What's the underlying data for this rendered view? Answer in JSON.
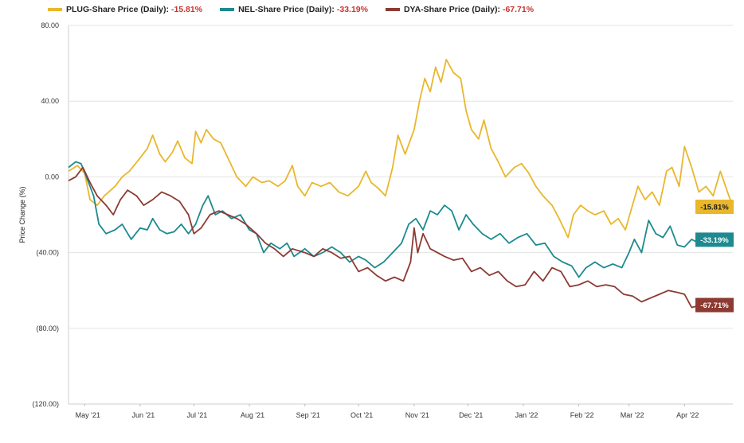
{
  "chart_data": {
    "type": "line",
    "ylabel": "Price Change (%)",
    "ylim": [
      -120,
      80
    ],
    "y_ticks": [
      80,
      40,
      0,
      -40,
      -80,
      -120
    ],
    "y_tick_labels": [
      "80.00",
      "40.00",
      "0.00",
      "(40.00)",
      "(80.00)",
      "(120.00)"
    ],
    "xlim": [
      "2021-04-22",
      "2022-04-28"
    ],
    "x_ticks": [
      "2021-05-01",
      "2021-06-01",
      "2021-07-01",
      "2021-08-01",
      "2021-09-01",
      "2021-10-01",
      "2021-11-01",
      "2021-12-01",
      "2022-01-01",
      "2022-02-01",
      "2022-03-01",
      "2022-04-01"
    ],
    "x_tick_labels": [
      "May '21",
      "Jun '21",
      "Jul '21",
      "Aug '21",
      "Sep '21",
      "Oct '21",
      "Nov '21",
      "Dec '21",
      "Jan '22",
      "Feb '22",
      "Mar '22",
      "Apr '22"
    ],
    "grid": "horizontal",
    "legend_position": "top",
    "series": [
      {
        "name": "PLUG-Share Price (Daily):",
        "final_label": "-15.81%",
        "color": "#e9b72c",
        "points": [
          [
            "2021-04-22",
            3
          ],
          [
            "2021-04-27",
            6
          ],
          [
            "2021-05-01",
            2
          ],
          [
            "2021-05-04",
            -12
          ],
          [
            "2021-05-08",
            -15
          ],
          [
            "2021-05-12",
            -10
          ],
          [
            "2021-05-18",
            -5
          ],
          [
            "2021-05-22",
            0
          ],
          [
            "2021-05-26",
            3
          ],
          [
            "2021-06-01",
            10
          ],
          [
            "2021-06-05",
            15
          ],
          [
            "2021-06-08",
            22
          ],
          [
            "2021-06-12",
            12
          ],
          [
            "2021-06-15",
            8
          ],
          [
            "2021-06-19",
            13
          ],
          [
            "2021-06-22",
            19
          ],
          [
            "2021-06-26",
            10
          ],
          [
            "2021-06-30",
            7
          ],
          [
            "2021-07-02",
            24
          ],
          [
            "2021-07-05",
            18
          ],
          [
            "2021-07-08",
            25
          ],
          [
            "2021-07-12",
            20
          ],
          [
            "2021-07-16",
            18
          ],
          [
            "2021-07-20",
            10
          ],
          [
            "2021-07-25",
            0
          ],
          [
            "2021-07-30",
            -5
          ],
          [
            "2021-08-03",
            0
          ],
          [
            "2021-08-08",
            -3
          ],
          [
            "2021-08-12",
            -2
          ],
          [
            "2021-08-17",
            -5
          ],
          [
            "2021-08-21",
            -2
          ],
          [
            "2021-08-25",
            6
          ],
          [
            "2021-08-28",
            -5
          ],
          [
            "2021-09-01",
            -10
          ],
          [
            "2021-09-05",
            -3
          ],
          [
            "2021-09-10",
            -5
          ],
          [
            "2021-09-15",
            -3
          ],
          [
            "2021-09-20",
            -8
          ],
          [
            "2021-09-25",
            -10
          ],
          [
            "2021-10-01",
            -5
          ],
          [
            "2021-10-05",
            3
          ],
          [
            "2021-10-08",
            -3
          ],
          [
            "2021-10-12",
            -6
          ],
          [
            "2021-10-16",
            -10
          ],
          [
            "2021-10-20",
            5
          ],
          [
            "2021-10-23",
            22
          ],
          [
            "2021-10-27",
            12
          ],
          [
            "2021-11-01",
            25
          ],
          [
            "2021-11-04",
            40
          ],
          [
            "2021-11-07",
            52
          ],
          [
            "2021-11-10",
            45
          ],
          [
            "2021-11-13",
            58
          ],
          [
            "2021-11-16",
            50
          ],
          [
            "2021-11-19",
            62
          ],
          [
            "2021-11-23",
            55
          ],
          [
            "2021-11-27",
            52
          ],
          [
            "2021-11-30",
            35
          ],
          [
            "2021-12-03",
            25
          ],
          [
            "2021-12-07",
            20
          ],
          [
            "2021-12-10",
            30
          ],
          [
            "2021-12-14",
            15
          ],
          [
            "2021-12-18",
            8
          ],
          [
            "2021-12-22",
            0
          ],
          [
            "2021-12-27",
            5
          ],
          [
            "2021-12-31",
            7
          ],
          [
            "2022-01-04",
            2
          ],
          [
            "2022-01-08",
            -5
          ],
          [
            "2022-01-12",
            -10
          ],
          [
            "2022-01-17",
            -15
          ],
          [
            "2022-01-21",
            -22
          ],
          [
            "2022-01-26",
            -32
          ],
          [
            "2022-01-29",
            -20
          ],
          [
            "2022-02-02",
            -15
          ],
          [
            "2022-02-06",
            -18
          ],
          [
            "2022-02-10",
            -20
          ],
          [
            "2022-02-15",
            -18
          ],
          [
            "2022-02-19",
            -25
          ],
          [
            "2022-02-23",
            -22
          ],
          [
            "2022-02-27",
            -28
          ],
          [
            "2022-03-02",
            -18
          ],
          [
            "2022-03-06",
            -5
          ],
          [
            "2022-03-10",
            -12
          ],
          [
            "2022-03-14",
            -8
          ],
          [
            "2022-03-18",
            -15
          ],
          [
            "2022-03-22",
            3
          ],
          [
            "2022-03-25",
            5
          ],
          [
            "2022-03-29",
            -5
          ],
          [
            "2022-04-01",
            16
          ],
          [
            "2022-04-05",
            5
          ],
          [
            "2022-04-09",
            -8
          ],
          [
            "2022-04-13",
            -5
          ],
          [
            "2022-04-17",
            -10
          ],
          [
            "2022-04-21",
            3
          ],
          [
            "2022-04-25",
            -8
          ],
          [
            "2022-04-28",
            -15.81
          ]
        ]
      },
      {
        "name": "NEL-Share Price (Daily):",
        "final_label": "-33.19%",
        "color": "#1d8a8f",
        "points": [
          [
            "2021-04-22",
            5
          ],
          [
            "2021-04-26",
            8
          ],
          [
            "2021-04-29",
            7
          ],
          [
            "2021-05-02",
            0
          ],
          [
            "2021-05-06",
            -10
          ],
          [
            "2021-05-09",
            -25
          ],
          [
            "2021-05-13",
            -30
          ],
          [
            "2021-05-18",
            -28
          ],
          [
            "2021-05-22",
            -25
          ],
          [
            "2021-05-27",
            -33
          ],
          [
            "2021-06-01",
            -27
          ],
          [
            "2021-06-05",
            -28
          ],
          [
            "2021-06-08",
            -22
          ],
          [
            "2021-06-12",
            -28
          ],
          [
            "2021-06-16",
            -30
          ],
          [
            "2021-06-20",
            -29
          ],
          [
            "2021-06-24",
            -25
          ],
          [
            "2021-06-28",
            -30
          ],
          [
            "2021-07-02",
            -25
          ],
          [
            "2021-07-06",
            -15
          ],
          [
            "2021-07-09",
            -10
          ],
          [
            "2021-07-13",
            -20
          ],
          [
            "2021-07-17",
            -18
          ],
          [
            "2021-07-22",
            -22
          ],
          [
            "2021-07-27",
            -20
          ],
          [
            "2021-08-01",
            -28
          ],
          [
            "2021-08-05",
            -30
          ],
          [
            "2021-08-09",
            -40
          ],
          [
            "2021-08-13",
            -35
          ],
          [
            "2021-08-18",
            -38
          ],
          [
            "2021-08-22",
            -35
          ],
          [
            "2021-08-26",
            -42
          ],
          [
            "2021-09-01",
            -38
          ],
          [
            "2021-09-06",
            -42
          ],
          [
            "2021-09-11",
            -40
          ],
          [
            "2021-09-16",
            -37
          ],
          [
            "2021-09-21",
            -40
          ],
          [
            "2021-09-26",
            -45
          ],
          [
            "2021-10-01",
            -42
          ],
          [
            "2021-10-05",
            -44
          ],
          [
            "2021-10-10",
            -48
          ],
          [
            "2021-10-15",
            -45
          ],
          [
            "2021-10-20",
            -40
          ],
          [
            "2021-10-25",
            -35
          ],
          [
            "2021-10-29",
            -25
          ],
          [
            "2021-11-02",
            -22
          ],
          [
            "2021-11-06",
            -28
          ],
          [
            "2021-11-10",
            -18
          ],
          [
            "2021-11-14",
            -20
          ],
          [
            "2021-11-18",
            -15
          ],
          [
            "2021-11-22",
            -18
          ],
          [
            "2021-11-26",
            -28
          ],
          [
            "2021-11-30",
            -20
          ],
          [
            "2021-12-04",
            -25
          ],
          [
            "2021-12-09",
            -30
          ],
          [
            "2021-12-14",
            -33
          ],
          [
            "2021-12-19",
            -30
          ],
          [
            "2021-12-24",
            -35
          ],
          [
            "2021-12-29",
            -32
          ],
          [
            "2022-01-03",
            -30
          ],
          [
            "2022-01-08",
            -36
          ],
          [
            "2022-01-13",
            -35
          ],
          [
            "2022-01-18",
            -42
          ],
          [
            "2022-01-23",
            -45
          ],
          [
            "2022-01-28",
            -47
          ],
          [
            "2022-02-01",
            -53
          ],
          [
            "2022-02-05",
            -48
          ],
          [
            "2022-02-10",
            -45
          ],
          [
            "2022-02-15",
            -48
          ],
          [
            "2022-02-20",
            -46
          ],
          [
            "2022-02-25",
            -48
          ],
          [
            "2022-03-01",
            -40
          ],
          [
            "2022-03-04",
            -33
          ],
          [
            "2022-03-08",
            -40
          ],
          [
            "2022-03-12",
            -23
          ],
          [
            "2022-03-16",
            -30
          ],
          [
            "2022-03-20",
            -32
          ],
          [
            "2022-03-24",
            -26
          ],
          [
            "2022-03-28",
            -36
          ],
          [
            "2022-04-01",
            -37
          ],
          [
            "2022-04-05",
            -33
          ],
          [
            "2022-04-09",
            -35
          ],
          [
            "2022-04-13",
            -34
          ],
          [
            "2022-04-17",
            -35
          ],
          [
            "2022-04-21",
            -33
          ],
          [
            "2022-04-25",
            -30
          ],
          [
            "2022-04-28",
            -33.19
          ]
        ]
      },
      {
        "name": "DYA-Share Price (Daily):",
        "final_label": "-67.71%",
        "color": "#8c3a32",
        "points": [
          [
            "2021-04-22",
            -2
          ],
          [
            "2021-04-26",
            0
          ],
          [
            "2021-04-30",
            5
          ],
          [
            "2021-05-04",
            -3
          ],
          [
            "2021-05-08",
            -10
          ],
          [
            "2021-05-13",
            -15
          ],
          [
            "2021-05-17",
            -20
          ],
          [
            "2021-05-21",
            -12
          ],
          [
            "2021-05-25",
            -7
          ],
          [
            "2021-05-30",
            -10
          ],
          [
            "2021-06-03",
            -15
          ],
          [
            "2021-06-08",
            -12
          ],
          [
            "2021-06-13",
            -8
          ],
          [
            "2021-06-18",
            -10
          ],
          [
            "2021-06-23",
            -13
          ],
          [
            "2021-06-28",
            -20
          ],
          [
            "2021-07-01",
            -30
          ],
          [
            "2021-07-05",
            -27
          ],
          [
            "2021-07-10",
            -20
          ],
          [
            "2021-07-15",
            -18
          ],
          [
            "2021-07-20",
            -20
          ],
          [
            "2021-07-25",
            -22
          ],
          [
            "2021-07-30",
            -25
          ],
          [
            "2021-08-05",
            -30
          ],
          [
            "2021-08-10",
            -35
          ],
          [
            "2021-08-15",
            -38
          ],
          [
            "2021-08-20",
            -42
          ],
          [
            "2021-08-25",
            -38
          ],
          [
            "2021-09-01",
            -40
          ],
          [
            "2021-09-06",
            -42
          ],
          [
            "2021-09-11",
            -38
          ],
          [
            "2021-09-16",
            -40
          ],
          [
            "2021-09-21",
            -43
          ],
          [
            "2021-09-26",
            -42
          ],
          [
            "2021-10-01",
            -50
          ],
          [
            "2021-10-06",
            -48
          ],
          [
            "2021-10-11",
            -52
          ],
          [
            "2021-10-16",
            -55
          ],
          [
            "2021-10-21",
            -53
          ],
          [
            "2021-10-26",
            -55
          ],
          [
            "2021-10-30",
            -45
          ],
          [
            "2021-11-01",
            -27
          ],
          [
            "2021-11-03",
            -40
          ],
          [
            "2021-11-06",
            -30
          ],
          [
            "2021-11-10",
            -38
          ],
          [
            "2021-11-14",
            -40
          ],
          [
            "2021-11-18",
            -42
          ],
          [
            "2021-11-23",
            -44
          ],
          [
            "2021-11-28",
            -43
          ],
          [
            "2021-12-03",
            -50
          ],
          [
            "2021-12-08",
            -48
          ],
          [
            "2021-12-13",
            -52
          ],
          [
            "2021-12-18",
            -50
          ],
          [
            "2021-12-23",
            -55
          ],
          [
            "2021-12-28",
            -58
          ],
          [
            "2022-01-02",
            -57
          ],
          [
            "2022-01-07",
            -50
          ],
          [
            "2022-01-12",
            -55
          ],
          [
            "2022-01-17",
            -48
          ],
          [
            "2022-01-22",
            -50
          ],
          [
            "2022-01-27",
            -58
          ],
          [
            "2022-02-01",
            -57
          ],
          [
            "2022-02-06",
            -55
          ],
          [
            "2022-02-11",
            -58
          ],
          [
            "2022-02-16",
            -57
          ],
          [
            "2022-02-21",
            -58
          ],
          [
            "2022-02-26",
            -62
          ],
          [
            "2022-03-03",
            -63
          ],
          [
            "2022-03-08",
            -66
          ],
          [
            "2022-03-13",
            -64
          ],
          [
            "2022-03-18",
            -62
          ],
          [
            "2022-03-23",
            -60
          ],
          [
            "2022-03-28",
            -61
          ],
          [
            "2022-04-01",
            -62
          ],
          [
            "2022-04-05",
            -69
          ],
          [
            "2022-04-09",
            -68
          ],
          [
            "2022-04-13",
            -65
          ],
          [
            "2022-04-17",
            -67
          ],
          [
            "2022-04-21",
            -66
          ],
          [
            "2022-04-25",
            -68
          ],
          [
            "2022-04-28",
            -67.71
          ]
        ]
      }
    ]
  }
}
